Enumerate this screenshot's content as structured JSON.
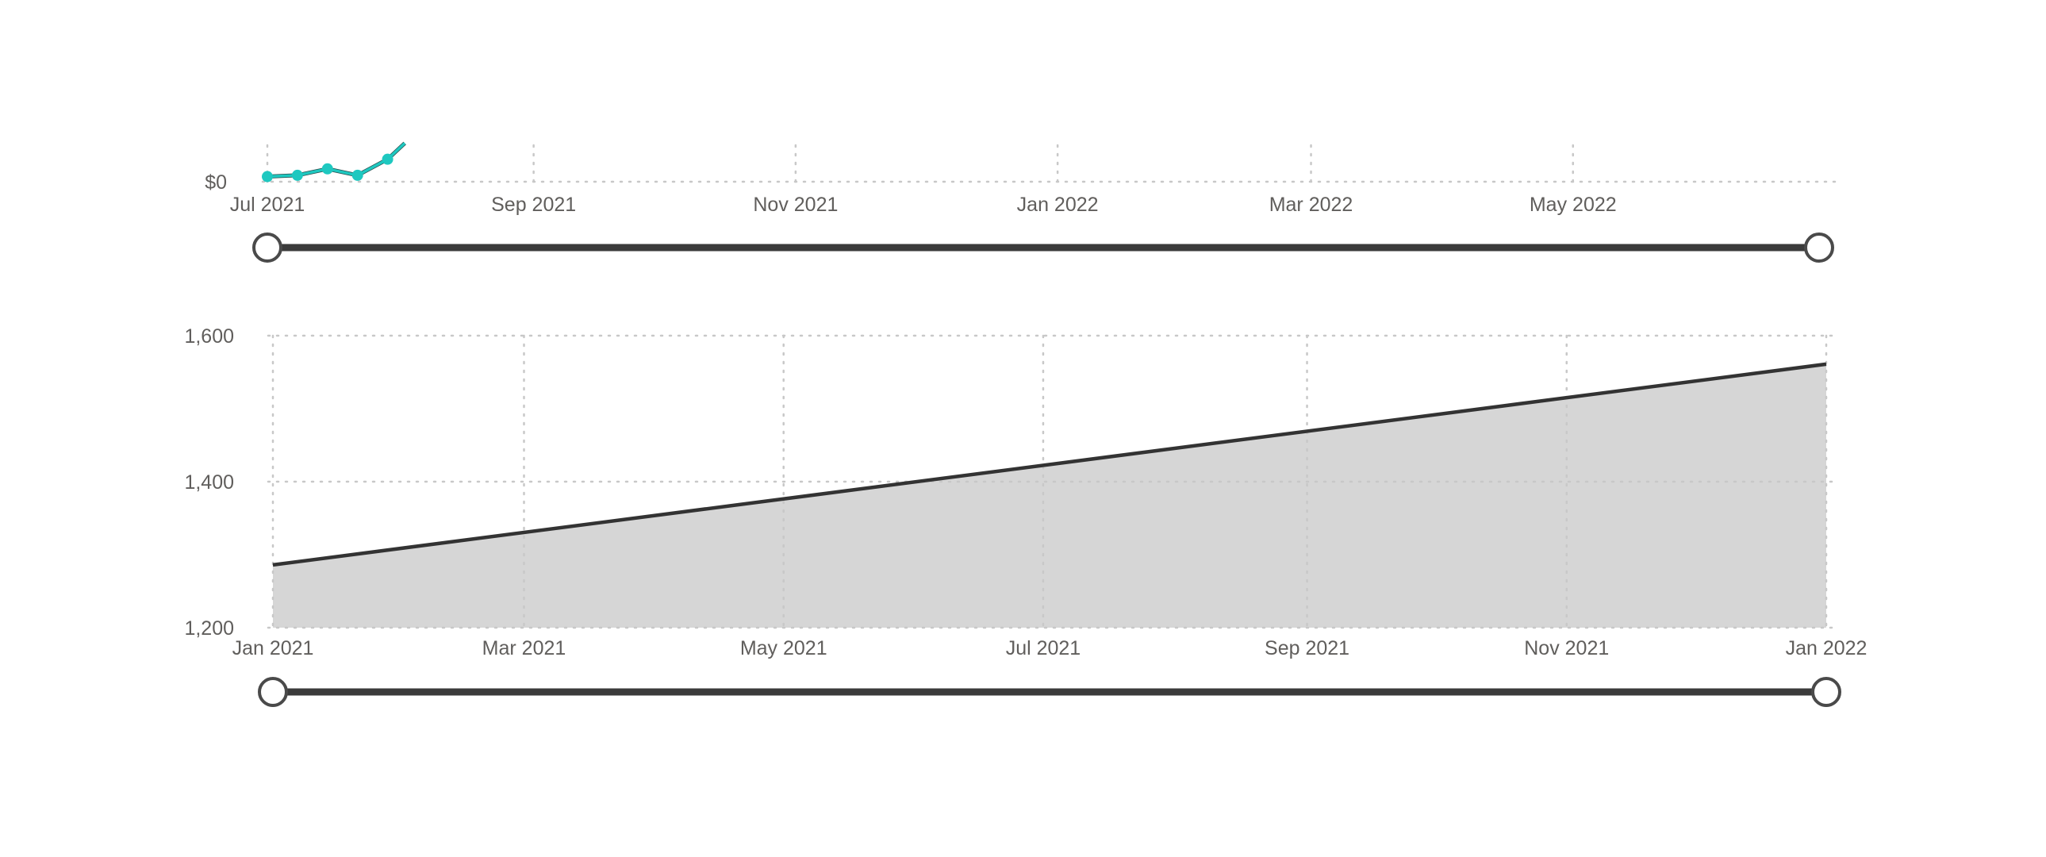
{
  "chart_data": [
    {
      "type": "line",
      "title": "",
      "xlabel": "",
      "ylabel": "",
      "x_ticks": [
        "Jul 2021",
        "Sep 2021",
        "Nov 2021",
        "Jan 2022",
        "Mar 2022",
        "May 2022"
      ],
      "x_range": [
        "2021-07-01",
        "2022-07-01"
      ],
      "y_ticks": [
        "$0"
      ],
      "grid": true,
      "series_color": "#1ec8c0",
      "series": [
        {
          "x": [
            "2021-07-01",
            "2021-07-08",
            "2021-07-15",
            "2021-07-22",
            "2021-07-29",
            "2021-08-02"
          ],
          "values": [
            0.08,
            0.1,
            0.2,
            0.1,
            0.35,
            0.6
          ]
        }
      ],
      "slider": {
        "start": "Jul 2021",
        "end": "Jun 2022"
      }
    },
    {
      "type": "area",
      "title": "",
      "xlabel": "",
      "ylabel": "",
      "x_ticks": [
        "Jan 2021",
        "Mar 2021",
        "May 2021",
        "Jul 2021",
        "Sep 2021",
        "Nov 2021",
        "Jan 2022"
      ],
      "x_range": [
        "2021-01-01",
        "2022-01-01"
      ],
      "y_ticks": [
        "1,200",
        "1,400",
        "1,600"
      ],
      "ylim": [
        1200,
        1600
      ],
      "grid": true,
      "line_color": "#333333",
      "fill_color": "#d6d6d6",
      "series": [
        {
          "x": [
            "2021-01-01",
            "2022-01-01"
          ],
          "values": [
            1286,
            1561
          ]
        }
      ],
      "slider": {
        "start": "Jan 2021",
        "end": "Jan 2022"
      }
    }
  ]
}
